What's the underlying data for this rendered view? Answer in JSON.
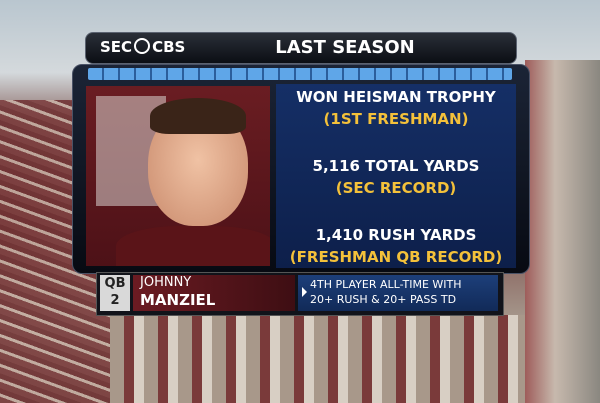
{
  "logo": {
    "left": "SEC",
    "right": "CBS"
  },
  "title": "LAST SEASON",
  "stats": [
    {
      "line": "WON HEISMAN TROPHY",
      "note": "(1ST FRESHMAN)"
    },
    {
      "line": "5,116 TOTAL YARDS",
      "note": "(SEC RECORD)"
    },
    {
      "line": "1,410 RUSH YARDS",
      "note": "(FRESHMAN QB RECORD)"
    }
  ],
  "player": {
    "position": "QB",
    "number": "2",
    "first_name": "JOHNNY",
    "last_name": "MANZIEL"
  },
  "fact": [
    "4TH PLAYER ALL-TIME WITH",
    "20+ RUSH & 20+ PASS TD"
  ]
}
